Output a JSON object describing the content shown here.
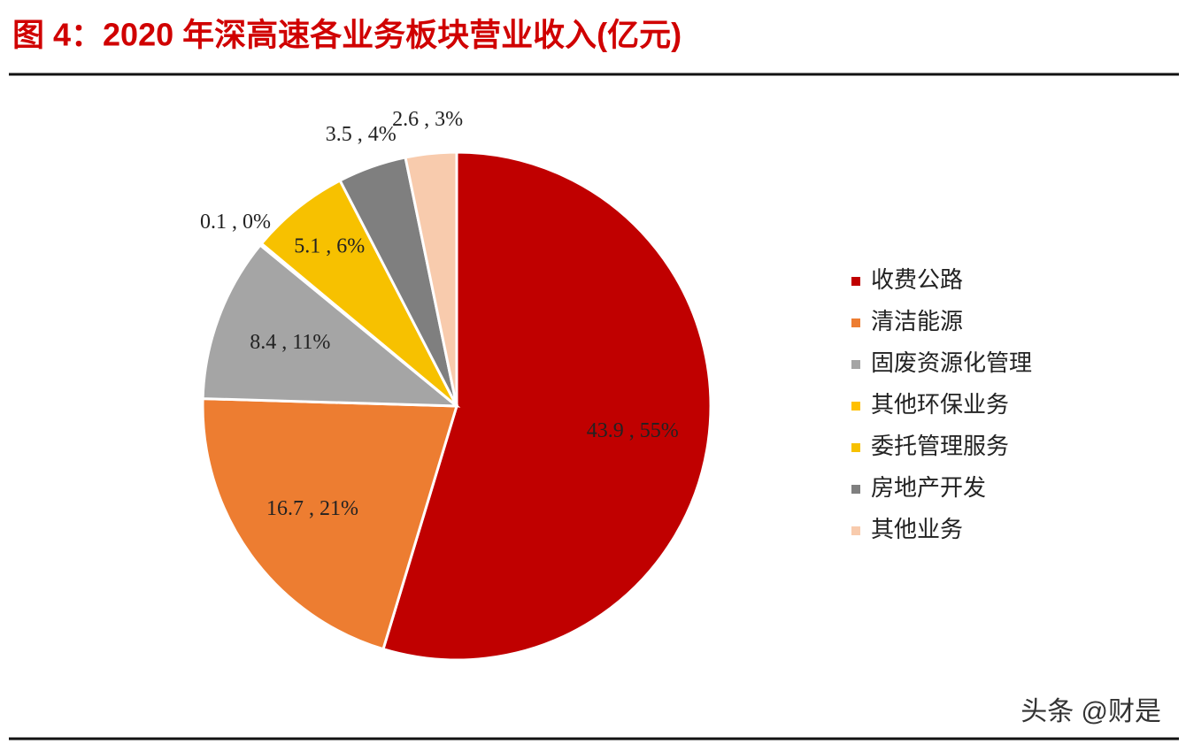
{
  "chart_data": {
    "type": "pie",
    "title": "图 4：2020 年深高速各业务板块营业收入(亿元)",
    "categories": [
      "收费公路",
      "清洁能源",
      "固废资源化管理",
      "其他环保业务",
      "委托管理服务",
      "房地产开发",
      "其他业务"
    ],
    "values": [
      43.9,
      16.7,
      8.4,
      0.1,
      5.1,
      3.5,
      2.6
    ],
    "value_labels": [
      "43.9 , 55%",
      "16.7 , 21%",
      "8.4 , 11%",
      "0.1 , 0%",
      "5.1 , 6%",
      "3.5 , 4%",
      "2.6 , 3%"
    ],
    "colors": [
      "#c00000",
      "#ed7d31",
      "#a5a5a5",
      "#ffc000",
      "#f7c100",
      "#7f7f7f",
      "#f8cbad"
    ],
    "legend": "right",
    "watermark": "头条 @财是"
  }
}
